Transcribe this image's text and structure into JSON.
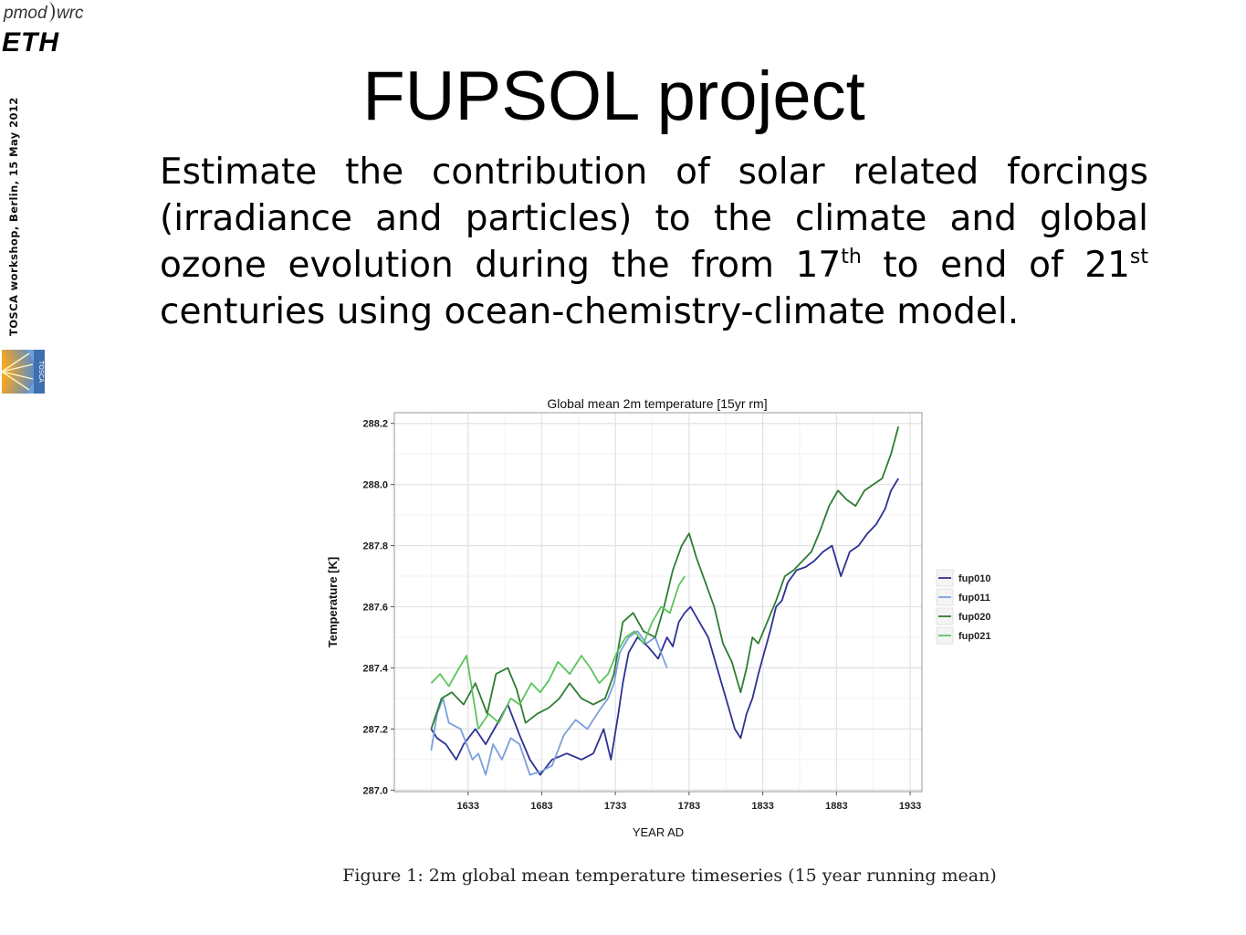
{
  "header": {
    "logo_pmod": "pmod",
    "logo_wrc": "wrc",
    "logo_eth": "ETH",
    "side_note": "TOSCA workshop, Berlin, 15 May 2012",
    "tosca_logo_text": "TOSCA"
  },
  "slide": {
    "title": "FUPSOL project",
    "text_part1": "Estimate the contribution of solar related forcings (irradiance and particles) to the climate and global ozone evolution during the from 17",
    "sup1": "th",
    "text_part2": " to end of 21",
    "sup2": "st",
    "text_part3": " centuries using ocean-chemistry-climate model."
  },
  "caption": "Figure 1: 2m global mean temperature timeseries (15 year running mean)",
  "chart_data": {
    "type": "line",
    "title": "Global mean 2m temperature [15yr rm]",
    "xlabel": "YEAR AD",
    "ylabel": "Temperature [K]",
    "xlim": [
      1583,
      1941
    ],
    "ylim": [
      286.995,
      288.235
    ],
    "xticks": [
      1633,
      1683,
      1733,
      1783,
      1833,
      1883,
      1933
    ],
    "yticks": [
      287.0,
      287.2,
      287.4,
      287.6,
      287.8,
      288.0,
      288.2
    ],
    "ytick_labels": [
      "287.0",
      "287.2",
      "287.4",
      "287.6",
      "287.8",
      "288.0",
      "288.2"
    ],
    "grid": true,
    "legend_position": "right",
    "series": [
      {
        "name": "fup010",
        "color": "#2e3192",
        "x": [
          1608,
          1612,
          1618,
          1625,
          1630,
          1638,
          1645,
          1652,
          1660,
          1668,
          1675,
          1682,
          1690,
          1700,
          1710,
          1718,
          1725,
          1730,
          1735,
          1738,
          1742,
          1748,
          1755,
          1762,
          1768,
          1772,
          1776,
          1780,
          1784,
          1790,
          1796,
          1802,
          1808,
          1814,
          1818,
          1822,
          1826,
          1830,
          1834,
          1838,
          1842,
          1846,
          1850,
          1856,
          1862,
          1868,
          1874,
          1880,
          1886,
          1892,
          1898,
          1904,
          1910,
          1916,
          1920,
          1925
        ],
        "y": [
          287.2,
          287.17,
          287.15,
          287.1,
          287.15,
          287.2,
          287.15,
          287.21,
          287.28,
          287.18,
          287.1,
          287.05,
          287.1,
          287.12,
          287.1,
          287.12,
          287.2,
          287.1,
          287.25,
          287.35,
          287.45,
          287.5,
          287.47,
          287.43,
          287.5,
          287.47,
          287.55,
          287.58,
          287.6,
          287.55,
          287.5,
          287.4,
          287.3,
          287.2,
          287.17,
          287.25,
          287.3,
          287.38,
          287.45,
          287.52,
          287.6,
          287.62,
          287.68,
          287.72,
          287.73,
          287.75,
          287.78,
          287.8,
          287.7,
          287.78,
          287.8,
          287.84,
          287.87,
          287.92,
          287.98,
          288.02
        ]
      },
      {
        "name": "fup011",
        "color": "#7b9fdc",
        "x": [
          1608,
          1612,
          1616,
          1620,
          1628,
          1636,
          1640,
          1645,
          1650,
          1656,
          1662,
          1668,
          1675,
          1682,
          1690,
          1698,
          1706,
          1714,
          1722,
          1728,
          1732,
          1736,
          1742,
          1748,
          1754,
          1760,
          1764,
          1768
        ],
        "y": [
          287.13,
          287.25,
          287.3,
          287.22,
          287.2,
          287.1,
          287.12,
          287.05,
          287.15,
          287.1,
          287.17,
          287.15,
          287.05,
          287.06,
          287.08,
          287.18,
          287.23,
          287.2,
          287.26,
          287.3,
          287.35,
          287.45,
          287.5,
          287.52,
          287.48,
          287.5,
          287.45,
          287.4
        ]
      },
      {
        "name": "fup020",
        "color": "#2e7d32",
        "x": [
          1608,
          1615,
          1622,
          1630,
          1638,
          1646,
          1652,
          1660,
          1666,
          1672,
          1680,
          1688,
          1695,
          1702,
          1710,
          1718,
          1726,
          1732,
          1738,
          1745,
          1752,
          1760,
          1766,
          1772,
          1778,
          1783,
          1788,
          1794,
          1800,
          1806,
          1812,
          1818,
          1822,
          1826,
          1830,
          1836,
          1842,
          1848,
          1854,
          1860,
          1866,
          1872,
          1878,
          1884,
          1890,
          1896,
          1902,
          1908,
          1914,
          1920,
          1925
        ],
        "y": [
          287.2,
          287.3,
          287.32,
          287.28,
          287.35,
          287.25,
          287.38,
          287.4,
          287.33,
          287.22,
          287.25,
          287.27,
          287.3,
          287.35,
          287.3,
          287.28,
          287.3,
          287.38,
          287.55,
          287.58,
          287.52,
          287.5,
          287.6,
          287.72,
          287.8,
          287.84,
          287.76,
          287.68,
          287.6,
          287.48,
          287.42,
          287.32,
          287.4,
          287.5,
          287.48,
          287.55,
          287.62,
          287.7,
          287.72,
          287.75,
          287.78,
          287.85,
          287.93,
          287.98,
          287.95,
          287.93,
          287.98,
          288.0,
          288.02,
          288.1,
          288.19
        ]
      },
      {
        "name": "fup021",
        "color": "#5cc45c",
        "x": [
          1608,
          1614,
          1620,
          1627,
          1632,
          1640,
          1647,
          1654,
          1662,
          1668,
          1676,
          1682,
          1688,
          1694,
          1702,
          1710,
          1716,
          1722,
          1728,
          1734,
          1740,
          1746,
          1752,
          1758,
          1764,
          1770,
          1776,
          1780
        ],
        "y": [
          287.35,
          287.38,
          287.34,
          287.4,
          287.44,
          287.2,
          287.25,
          287.22,
          287.3,
          287.28,
          287.35,
          287.32,
          287.36,
          287.42,
          287.38,
          287.44,
          287.4,
          287.35,
          287.38,
          287.45,
          287.5,
          287.52,
          287.48,
          287.55,
          287.6,
          287.58,
          287.67,
          287.7
        ]
      }
    ]
  }
}
